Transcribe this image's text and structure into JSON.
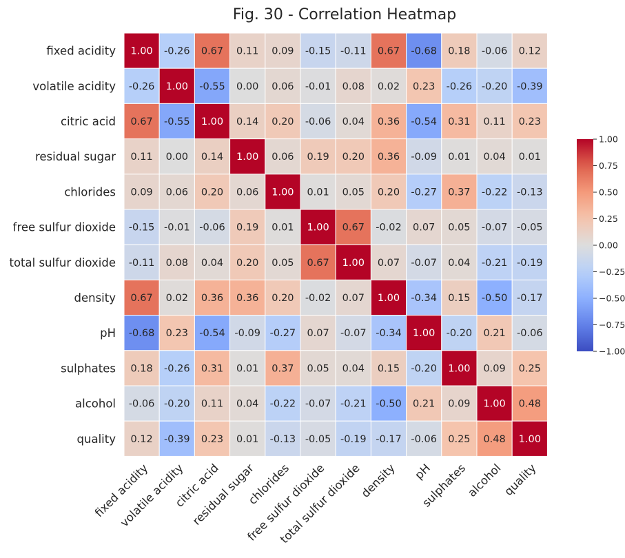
{
  "chart_data": {
    "type": "heatmap",
    "title": "Fig. 30 - Correlation Heatmap",
    "variables": [
      "fixed acidity",
      "volatile acidity",
      "citric acid",
      "residual sugar",
      "chlorides",
      "free sulfur dioxide",
      "total sulfur dioxide",
      "density",
      "pH",
      "sulphates",
      "alcohol",
      "quality"
    ],
    "matrix": [
      [
        1.0,
        -0.26,
        0.67,
        0.11,
        0.09,
        -0.15,
        -0.11,
        0.67,
        -0.68,
        0.18,
        -0.06,
        0.12
      ],
      [
        -0.26,
        1.0,
        -0.55,
        0.0,
        0.06,
        -0.01,
        0.08,
        0.02,
        0.23,
        -0.26,
        -0.2,
        -0.39
      ],
      [
        0.67,
        -0.55,
        1.0,
        0.14,
        0.2,
        -0.06,
        0.04,
        0.36,
        -0.54,
        0.31,
        0.11,
        0.23
      ],
      [
        0.11,
        0.0,
        0.14,
        1.0,
        0.06,
        0.19,
        0.2,
        0.36,
        -0.09,
        0.01,
        0.04,
        0.01
      ],
      [
        0.09,
        0.06,
        0.2,
        0.06,
        1.0,
        0.01,
        0.05,
        0.2,
        -0.27,
        0.37,
        -0.22,
        -0.13
      ],
      [
        -0.15,
        -0.01,
        -0.06,
        0.19,
        0.01,
        1.0,
        0.67,
        -0.02,
        0.07,
        0.05,
        -0.07,
        -0.05
      ],
      [
        -0.11,
        0.08,
        0.04,
        0.2,
        0.05,
        0.67,
        1.0,
        0.07,
        -0.07,
        0.04,
        -0.21,
        -0.19
      ],
      [
        0.67,
        0.02,
        0.36,
        0.36,
        0.2,
        -0.02,
        0.07,
        1.0,
        -0.34,
        0.15,
        -0.5,
        -0.17
      ],
      [
        -0.68,
        0.23,
        -0.54,
        -0.09,
        -0.27,
        0.07,
        -0.07,
        -0.34,
        1.0,
        -0.2,
        0.21,
        -0.06
      ],
      [
        0.18,
        -0.26,
        0.31,
        0.01,
        0.37,
        0.05,
        0.04,
        0.15,
        -0.2,
        1.0,
        0.09,
        0.25
      ],
      [
        -0.06,
        -0.2,
        0.11,
        0.04,
        -0.22,
        -0.07,
        -0.21,
        -0.5,
        0.21,
        0.09,
        1.0,
        0.48
      ],
      [
        0.12,
        -0.39,
        0.23,
        0.01,
        -0.13,
        -0.05,
        -0.19,
        -0.17,
        -0.06,
        0.25,
        0.48,
        1.0
      ]
    ],
    "value_format": "2 decimals",
    "colormap": "coolwarm",
    "vmin": -1.0,
    "vmax": 1.0,
    "colorbar_ticks": [
      "1.00",
      "0.75",
      "0.50",
      "0.25",
      "0.00",
      "−0.25",
      "−0.50",
      "−0.75",
      "−1.00"
    ],
    "colorbar_tick_values": [
      1.0,
      0.75,
      0.5,
      0.25,
      0.0,
      -0.25,
      -0.5,
      -0.75,
      -1.0
    ],
    "colorbar_placement": "right",
    "cell_border_color": "#ffffff"
  }
}
